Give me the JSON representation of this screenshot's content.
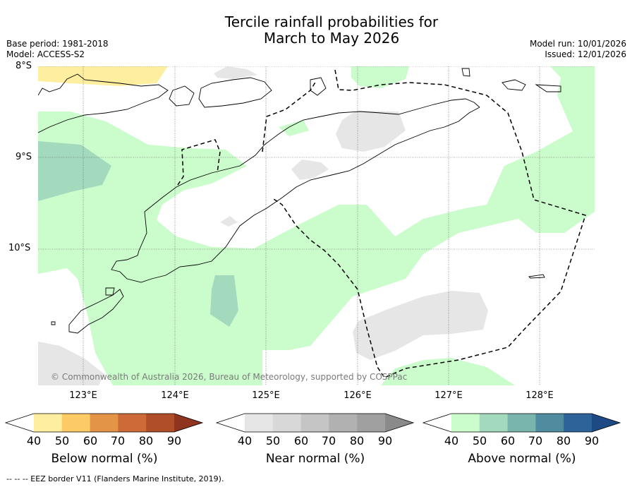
{
  "title": {
    "line1": "Tercile rainfall probabilities for",
    "line2": "March to May 2026"
  },
  "meta": {
    "base_period": "Base period: 1981-2018",
    "model": "Model: ACCESS-S2",
    "model_run": "Model run: 10/01/2026",
    "issued": "Issued: 12/01/2026"
  },
  "map": {
    "lat_labels": [
      "8°S",
      "9°S",
      "10°S"
    ],
    "lon_labels": [
      "123°E",
      "124°E",
      "125°E",
      "126°E",
      "127°E",
      "128°E"
    ],
    "credit": "© Commonwealth of Australia 2026, Bureau of Meteorology, supported by COSPPac"
  },
  "colorbars": [
    {
      "label": "Below normal (%)",
      "ticks": [
        "40",
        "50",
        "60",
        "70",
        "80",
        "90"
      ],
      "colors": [
        "#ffffff",
        "#feeea0",
        "#fdcb66",
        "#e39446",
        "#cd6a37",
        "#b04e2a",
        "#8f351f"
      ]
    },
    {
      "label": "Near normal (%)",
      "ticks": [
        "40",
        "50",
        "60",
        "70",
        "80",
        "90"
      ],
      "colors": [
        "#ffffff",
        "#e6e6e6",
        "#d8d8d8",
        "#c5c5c5",
        "#b1b1b1",
        "#a0a0a0",
        "#8a8a8a"
      ]
    },
    {
      "label": "Above normal (%)",
      "ticks": [
        "40",
        "50",
        "60",
        "70",
        "80",
        "90"
      ],
      "colors": [
        "#ffffff",
        "#cbfccb",
        "#a3d9bd",
        "#7ab5ad",
        "#4f8ca0",
        "#2e6399",
        "#1d4a84"
      ]
    }
  ],
  "footnote": "--  --  -- EEZ border V11 (Flanders Marine Institute, 2019).",
  "palette": {
    "above_light": "#cbfccb",
    "above_mid": "#a3d9bd",
    "below_light": "#feeea0",
    "near_light": "#e6e6e6"
  }
}
